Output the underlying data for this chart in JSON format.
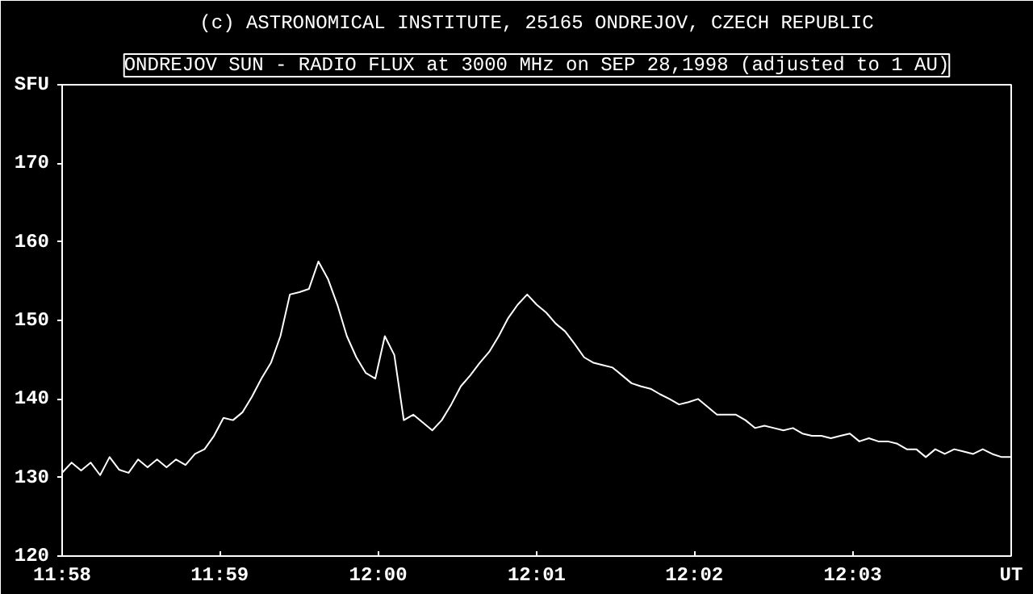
{
  "chart_data": {
    "type": "line",
    "title": "ONDREJOV SUN - RADIO FLUX at 3000 MHz on SEP 28,1998 (adjusted to 1 AU)",
    "annotations": [
      "(c) ASTRONOMICAL INSTITUTE, 25165 ONDREJOV, CZECH REPUBLIC"
    ],
    "xlabel": "UT",
    "ylabel": "SFU",
    "x": [
      11.9667,
      11.9677,
      11.9687,
      11.9697,
      11.9707,
      11.9717,
      11.9727,
      11.9737,
      11.9747,
      11.9757,
      11.9767,
      11.9777,
      11.9787,
      11.9797,
      11.9807,
      11.9817,
      11.9827,
      11.9837,
      11.9847,
      11.9857,
      11.9867,
      11.9877,
      11.9887,
      11.9897,
      11.9907,
      11.9917,
      11.9927,
      11.9937,
      11.9947,
      11.9957,
      11.9967,
      11.9977,
      11.9987,
      11.9997,
      12.0007,
      12.0017,
      12.0027,
      12.0037,
      12.0047,
      12.0057,
      12.0067,
      12.0077,
      12.0087,
      12.0097,
      12.0107,
      12.0117,
      12.0127,
      12.0137,
      12.0147,
      12.0157,
      12.0167,
      12.0177,
      12.0187,
      12.0197,
      12.0207,
      12.0217,
      12.0227,
      12.0237,
      12.0247,
      12.0257,
      12.0267,
      12.0277,
      12.0287,
      12.0297,
      12.0307,
      12.0317,
      12.0327,
      12.0337,
      12.0347,
      12.0357,
      12.0367,
      12.0377,
      12.0387,
      12.0397,
      12.0407,
      12.0417,
      12.0427,
      12.0437,
      12.0447,
      12.0457,
      12.0467,
      12.0477,
      12.0487,
      12.0497,
      12.0507,
      12.0517,
      12.0527,
      12.0537,
      12.0547,
      12.0557,
      12.0567,
      12.0577,
      12.0587,
      12.0597,
      12.0607,
      12.0617,
      12.0627,
      12.0637,
      12.0647,
      12.0657,
      12.0667
    ],
    "series": [
      {
        "color": "#ffffff",
        "values": [
          130.6,
          131.9,
          130.9,
          131.9,
          130.3,
          132.6,
          131.0,
          130.6,
          132.3,
          131.3,
          132.3,
          131.3,
          132.3,
          131.6,
          133.0,
          133.6,
          135.3,
          137.6,
          137.3,
          138.3,
          140.3,
          142.6,
          144.6,
          148.0,
          153.3,
          153.6,
          154.0,
          157.5,
          155.3,
          152.0,
          148.0,
          145.3,
          143.3,
          142.6,
          148.0,
          145.6,
          137.3,
          138.0,
          137.0,
          136.0,
          137.3,
          139.3,
          141.6,
          143.0,
          144.6,
          146.0,
          148.0,
          150.3,
          152.0,
          153.3,
          152.0,
          151.0,
          149.6,
          148.6,
          147.0,
          145.3,
          144.6,
          144.3,
          144.0,
          143.0,
          142.0,
          141.6,
          141.3,
          140.6,
          140.0,
          139.3,
          139.6,
          140.0,
          139.0,
          138.0,
          138.0,
          138.0,
          137.3,
          136.3,
          136.6,
          136.3,
          136.0,
          136.3,
          135.6,
          135.3,
          135.3,
          135.0,
          135.3,
          135.6,
          134.6,
          135.0,
          134.6,
          134.6,
          134.3,
          133.6,
          133.6,
          132.6,
          133.6,
          133.0,
          133.6,
          133.3,
          133.0,
          133.6,
          133.0,
          132.6,
          132.6
        ]
      }
    ],
    "xlim": [
      11.9667,
      12.0667
    ],
    "xticks": [
      {
        "value": 11.9667,
        "label": "11:58"
      },
      {
        "value": 11.9833,
        "label": "11:59"
      },
      {
        "value": 12,
        "label": "12:00"
      },
      {
        "value": 12.0167,
        "label": "12:01"
      },
      {
        "value": 12.0333,
        "label": "12:02"
      },
      {
        "value": 12.05,
        "label": "12:03"
      },
      {
        "value": 12.0667,
        "label": null
      }
    ],
    "ylim": [
      120,
      180
    ],
    "yticks": [
      120,
      130,
      140,
      150,
      160,
      170,
      {
        "value": 180,
        "label": null
      }
    ]
  }
}
